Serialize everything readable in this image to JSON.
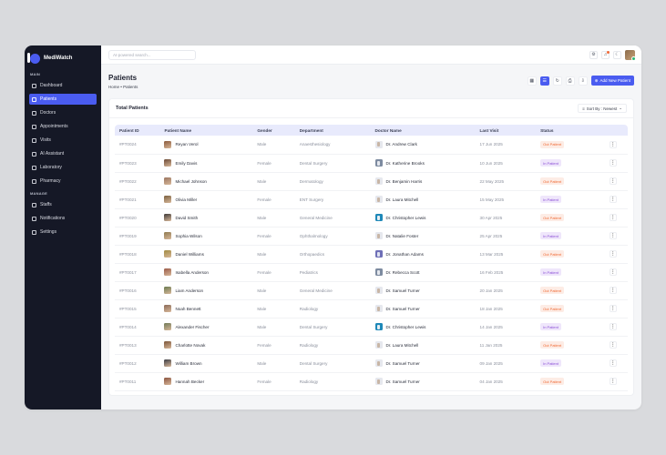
{
  "brand": {
    "name": "MediWatch"
  },
  "sidebar": {
    "sections": [
      {
        "label": "MAIN",
        "items": [
          {
            "label": "Dashboard",
            "icon": "dashboard-icon",
            "active": false
          },
          {
            "label": "Patients",
            "icon": "patients-icon",
            "active": true
          },
          {
            "label": "Doctors",
            "icon": "doctors-icon",
            "active": false
          },
          {
            "label": "Appointments",
            "icon": "calendar-icon",
            "active": false
          },
          {
            "label": "Visits",
            "icon": "visits-icon",
            "active": false
          },
          {
            "label": "AI Assistant",
            "icon": "robot-icon",
            "active": false
          },
          {
            "label": "Laboratory",
            "icon": "flask-icon",
            "active": false
          },
          {
            "label": "Pharmacy",
            "icon": "pill-icon",
            "active": false
          }
        ]
      },
      {
        "label": "MANAGE",
        "items": [
          {
            "label": "Staffs",
            "icon": "staff-icon",
            "active": false
          },
          {
            "label": "Notifications",
            "icon": "bell-icon",
            "active": false
          },
          {
            "label": "Settings",
            "icon": "gear-icon",
            "active": false
          }
        ]
      }
    ]
  },
  "topbar": {
    "search_placeholder": "AI-powered search...",
    "icons": {
      "settings": "⚙",
      "notifications": "🔔",
      "theme": "☾"
    }
  },
  "page": {
    "title": "Patients",
    "breadcrumb_home": "Home",
    "breadcrumb_sep": "•",
    "breadcrumb_current": "Patients",
    "add_button": "Add New Patient",
    "add_icon": "⊕"
  },
  "card": {
    "title": "Total Patients",
    "sort_label": "Sort By : Newest"
  },
  "table": {
    "headers": [
      "Patient ID",
      "Patient Name",
      "Gender",
      "Department",
      "Doctor Name",
      "Last Visit",
      "Status",
      ""
    ],
    "rows": [
      {
        "id": "#PT0024",
        "name": "Reyan Verol",
        "gender": "Male",
        "dept": "Anaesthesiology",
        "doctor": "Dr. Andrew Clark",
        "visit": "17 Jun 2025",
        "status": "Out Patient",
        "type": "out",
        "pav": "#8a5a3c",
        "dav": ""
      },
      {
        "id": "#PT0023",
        "name": "Emily Davis",
        "gender": "Female",
        "dept": "Dental Surgery",
        "doctor": "Dr. Katherine Brooks",
        "visit": "10 Jun 2025",
        "status": "In Patient",
        "type": "in",
        "pav": "#6b4a36",
        "dav": "slate"
      },
      {
        "id": "#PT0022",
        "name": "Michael Johnson",
        "gender": "Male",
        "dept": "Dermatology",
        "doctor": "Dr. Benjamin Harris",
        "visit": "22 May 2025",
        "status": "Out Patient",
        "type": "out",
        "pav": "#9a7560",
        "dav": ""
      },
      {
        "id": "#PT0021",
        "name": "Olivia Miller",
        "gender": "Female",
        "dept": "ENT Surgery",
        "doctor": "Dr. Laura Mitchell",
        "visit": "15 May 2025",
        "status": "In Patient",
        "type": "in",
        "pav": "#7a6040",
        "dav": ""
      },
      {
        "id": "#PT0020",
        "name": "David Smith",
        "gender": "Male",
        "dept": "General Medicine",
        "doctor": "Dr. Christopher Lewis",
        "visit": "30 Apr 2025",
        "status": "Out Patient",
        "type": "out",
        "pav": "#3e3a38",
        "dav": "teal"
      },
      {
        "id": "#PT0019",
        "name": "Sophia Wilson",
        "gender": "Female",
        "dept": "Ophthalmology",
        "doctor": "Dr. Natalie Foster",
        "visit": "25 Apr 2025",
        "status": "In Patient",
        "type": "in",
        "pav": "#8f7a50",
        "dav": ""
      },
      {
        "id": "#PT0018",
        "name": "Daniel Williams",
        "gender": "Male",
        "dept": "Orthopaedics",
        "doctor": "Dr. Jonathan Adams",
        "visit": "13 Mar 2025",
        "status": "Out Patient",
        "type": "out",
        "pav": "#a08a40",
        "dav": "purple"
      },
      {
        "id": "#PT0017",
        "name": "Isabella Anderson",
        "gender": "Female",
        "dept": "Pediatrics",
        "doctor": "Dr. Rebecca Scott",
        "visit": "16 Feb 2025",
        "status": "In Patient",
        "type": "in",
        "pav": "#9a5a48",
        "dav": "slate"
      },
      {
        "id": "#PT0016",
        "name": "Liam Anderson",
        "gender": "Male",
        "dept": "General Medicine",
        "doctor": "Dr. Samuel Turner",
        "visit": "20 Jan 2025",
        "status": "Out Patient",
        "type": "out",
        "pav": "#6a7a50",
        "dav": ""
      },
      {
        "id": "#PT0015",
        "name": "Noah Bennett",
        "gender": "Male",
        "dept": "Radiology",
        "doctor": "Dr. Samuel Turner",
        "visit": "18 Jan 2025",
        "status": "Out Patient",
        "type": "out",
        "pav": "#8a6a58",
        "dav": ""
      },
      {
        "id": "#PT0014",
        "name": "Alexander Fischer",
        "gender": "Male",
        "dept": "Dental Surgery",
        "doctor": "Dr. Christopher Lewis",
        "visit": "14 Jan 2025",
        "status": "In Patient",
        "type": "in",
        "pav": "#707a58",
        "dav": "teal"
      },
      {
        "id": "#PT0013",
        "name": "Charlotte Novak",
        "gender": "Female",
        "dept": "Radiology",
        "doctor": "Dr. Laura Mitchell",
        "visit": "11 Jan 2025",
        "status": "Out Patient",
        "type": "out",
        "pav": "#7a5438",
        "dav": ""
      },
      {
        "id": "#PT0012",
        "name": "William Brown",
        "gender": "Male",
        "dept": "Dental Surgery",
        "doctor": "Dr. Samuel Turner",
        "visit": "09 Jan 2025",
        "status": "In Patient",
        "type": "in",
        "pav": "#3a3c44",
        "dav": ""
      },
      {
        "id": "#PT0011",
        "name": "Hannah Becker",
        "gender": "Female",
        "dept": "Radiology",
        "doctor": "Dr. Samuel Turner",
        "visit": "04 Jan 2025",
        "status": "Out Patient",
        "type": "out",
        "pav": "#8a5440",
        "dav": ""
      }
    ]
  },
  "colors": {
    "accent": "#4a5cf0",
    "sidebar_bg": "#151826",
    "out_patient": "#f06a35",
    "in_patient": "#8b4fd6"
  }
}
